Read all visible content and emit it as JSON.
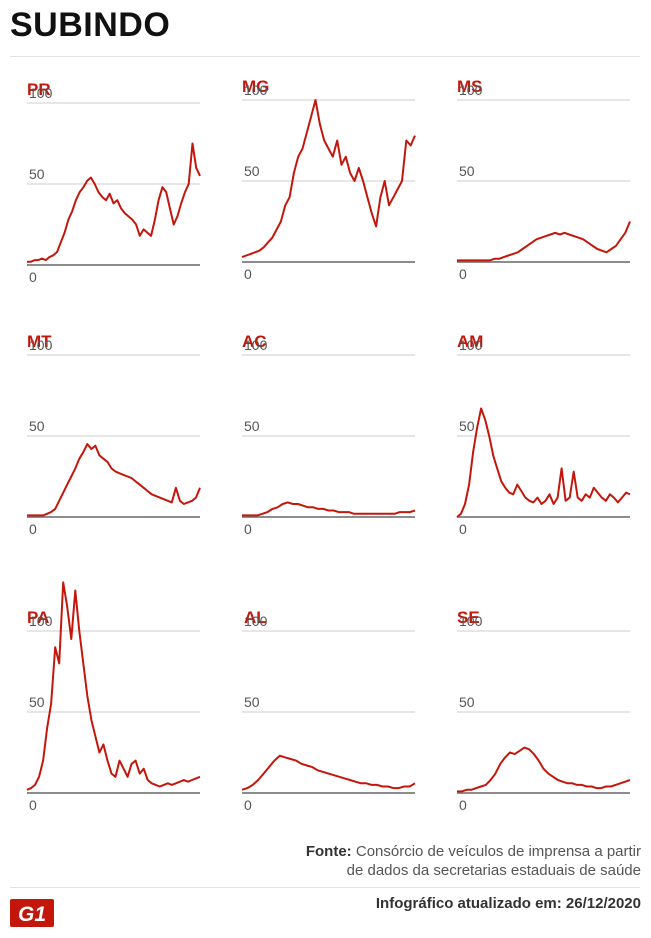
{
  "title": "SUBINDO",
  "source_label": "Fonte:",
  "source_line1": "Consórcio de veículos de imprensa a partir",
  "source_line2": "de dados da secretarias estaduais de saúde",
  "updated_label": "Infográfico atualizado em:",
  "updated_date": "26/12/2020",
  "logo_text": "G1",
  "colors": {
    "line": "#c4170c",
    "label": "#c4170c",
    "grid": "#cccccc",
    "axis": "#666666"
  },
  "chart_data": [
    {
      "type": "line",
      "label": "PR",
      "ylim": [
        0,
        100
      ],
      "yticks": [
        "0",
        "50",
        "100"
      ],
      "values": [
        2,
        2,
        3,
        3,
        4,
        3,
        5,
        6,
        8,
        14,
        20,
        28,
        33,
        40,
        45,
        48,
        52,
        54,
        50,
        45,
        42,
        40,
        44,
        38,
        40,
        35,
        32,
        30,
        28,
        25,
        18,
        22,
        20,
        18,
        28,
        40,
        48,
        45,
        35,
        25,
        30,
        38,
        45,
        50,
        75,
        60,
        55
      ]
    },
    {
      "type": "line",
      "label": "MG",
      "ylim": [
        0,
        100
      ],
      "yticks": [
        "0",
        "50",
        "100"
      ],
      "values": [
        3,
        4,
        5,
        6,
        7,
        9,
        12,
        15,
        20,
        25,
        35,
        40,
        55,
        65,
        70,
        80,
        90,
        100,
        85,
        75,
        70,
        65,
        75,
        60,
        65,
        55,
        50,
        58,
        50,
        40,
        30,
        22,
        40,
        50,
        35,
        40,
        45,
        50,
        75,
        72,
        78
      ]
    },
    {
      "type": "line",
      "label": "MS",
      "ylim": [
        0,
        100
      ],
      "yticks": [
        "0",
        "50",
        "100"
      ],
      "values": [
        1,
        1,
        1,
        1,
        1,
        1,
        1,
        1,
        2,
        2,
        3,
        4,
        5,
        6,
        8,
        10,
        12,
        14,
        15,
        16,
        17,
        18,
        17,
        18,
        17,
        16,
        15,
        14,
        12,
        10,
        8,
        7,
        6,
        8,
        10,
        14,
        18,
        25
      ]
    },
    {
      "type": "line",
      "label": "MT",
      "ylim": [
        0,
        100
      ],
      "yticks": [
        "0",
        "50",
        "100"
      ],
      "values": [
        1,
        1,
        1,
        1,
        1,
        2,
        3,
        5,
        10,
        15,
        20,
        25,
        30,
        36,
        40,
        45,
        42,
        44,
        38,
        36,
        34,
        30,
        28,
        27,
        26,
        25,
        24,
        22,
        20,
        18,
        16,
        14,
        13,
        12,
        11,
        10,
        9,
        18,
        10,
        8,
        9,
        10,
        12,
        18
      ]
    },
    {
      "type": "line",
      "label": "AC",
      "ylim": [
        0,
        100
      ],
      "yticks": [
        "0",
        "50",
        "100"
      ],
      "values": [
        1,
        1,
        1,
        1,
        2,
        3,
        5,
        6,
        8,
        9,
        8,
        8,
        7,
        6,
        6,
        5,
        5,
        4,
        4,
        3,
        3,
        3,
        2,
        2,
        2,
        2,
        2,
        2,
        2,
        2,
        2,
        3,
        3,
        3,
        4
      ]
    },
    {
      "type": "line",
      "label": "AM",
      "ylim": [
        0,
        100
      ],
      "yticks": [
        "0",
        "50",
        "100"
      ],
      "values": [
        0,
        2,
        8,
        20,
        40,
        55,
        67,
        60,
        50,
        38,
        30,
        22,
        18,
        15,
        14,
        20,
        16,
        12,
        10,
        9,
        12,
        8,
        10,
        14,
        8,
        12,
        30,
        10,
        12,
        28,
        12,
        10,
        14,
        12,
        18,
        15,
        12,
        10,
        14,
        12,
        9,
        12,
        15,
        14
      ]
    },
    {
      "type": "line",
      "label": "PA",
      "ylim": [
        0,
        100
      ],
      "yticks": [
        "0",
        "50",
        "100"
      ],
      "values": [
        2,
        3,
        5,
        10,
        20,
        40,
        55,
        90,
        80,
        130,
        115,
        95,
        125,
        100,
        80,
        60,
        45,
        35,
        25,
        30,
        20,
        12,
        10,
        20,
        15,
        10,
        18,
        20,
        12,
        15,
        8,
        6,
        5,
        4,
        5,
        6,
        5,
        6,
        7,
        8,
        7,
        8,
        9,
        10
      ]
    },
    {
      "type": "line",
      "label": "AL",
      "ylim": [
        0,
        100
      ],
      "yticks": [
        "0",
        "50",
        "100"
      ],
      "values": [
        2,
        3,
        5,
        8,
        12,
        16,
        20,
        23,
        22,
        21,
        20,
        18,
        17,
        16,
        14,
        13,
        12,
        11,
        10,
        9,
        8,
        7,
        6,
        6,
        5,
        5,
        4,
        4,
        3,
        3,
        4,
        4,
        6
      ]
    },
    {
      "type": "line",
      "label": "SE",
      "ylim": [
        0,
        100
      ],
      "yticks": [
        "0",
        "50",
        "100"
      ],
      "values": [
        1,
        1,
        2,
        2,
        3,
        4,
        5,
        8,
        12,
        18,
        22,
        25,
        24,
        26,
        28,
        27,
        24,
        20,
        15,
        12,
        10,
        8,
        7,
        6,
        6,
        5,
        5,
        4,
        4,
        3,
        3,
        4,
        4,
        5,
        6,
        7,
        8
      ]
    }
  ]
}
